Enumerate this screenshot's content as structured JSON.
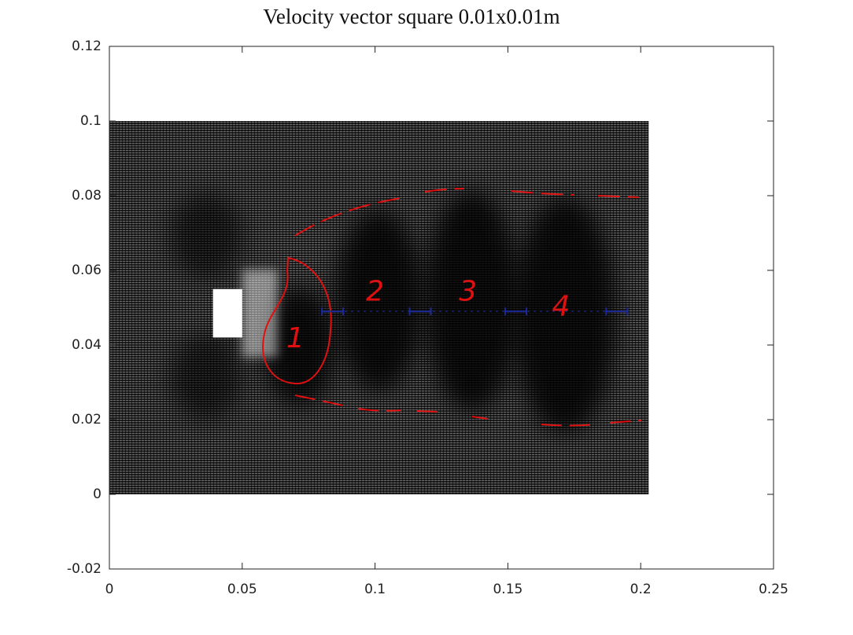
{
  "chart_data": {
    "type": "quiver",
    "title": "Velocity vector square 0.01x0.01m",
    "xlim": [
      0,
      0.25
    ],
    "ylim": [
      -0.02,
      0.12
    ],
    "xticks": [
      0,
      0.05,
      0.1,
      0.15,
      0.2,
      0.25
    ],
    "yticks": [
      -0.02,
      0,
      0.02,
      0.04,
      0.06,
      0.08,
      0.1,
      0.12
    ],
    "field": {
      "x": [
        0,
        0.203
      ],
      "y": [
        0,
        0.1
      ]
    },
    "obstacle": {
      "x": [
        0.039,
        0.05
      ],
      "y": [
        0.042,
        0.055
      ]
    },
    "vortices": [
      {
        "label": "1",
        "x": 0.07,
        "y": 0.0415
      },
      {
        "label": "2",
        "x": 0.1,
        "y": 0.054
      },
      {
        "label": "3",
        "x": 0.135,
        "y": 0.054
      },
      {
        "label": "4",
        "x": 0.17,
        "y": 0.05
      }
    ],
    "errorbar": {
      "color": "#1a2a9a",
      "x": [
        0.084,
        0.117,
        0.153,
        0.191
      ],
      "y": [
        0.049,
        0.049,
        0.049,
        0.049
      ],
      "xerr": [
        0.004,
        0.004,
        0.004,
        0.004
      ]
    }
  }
}
